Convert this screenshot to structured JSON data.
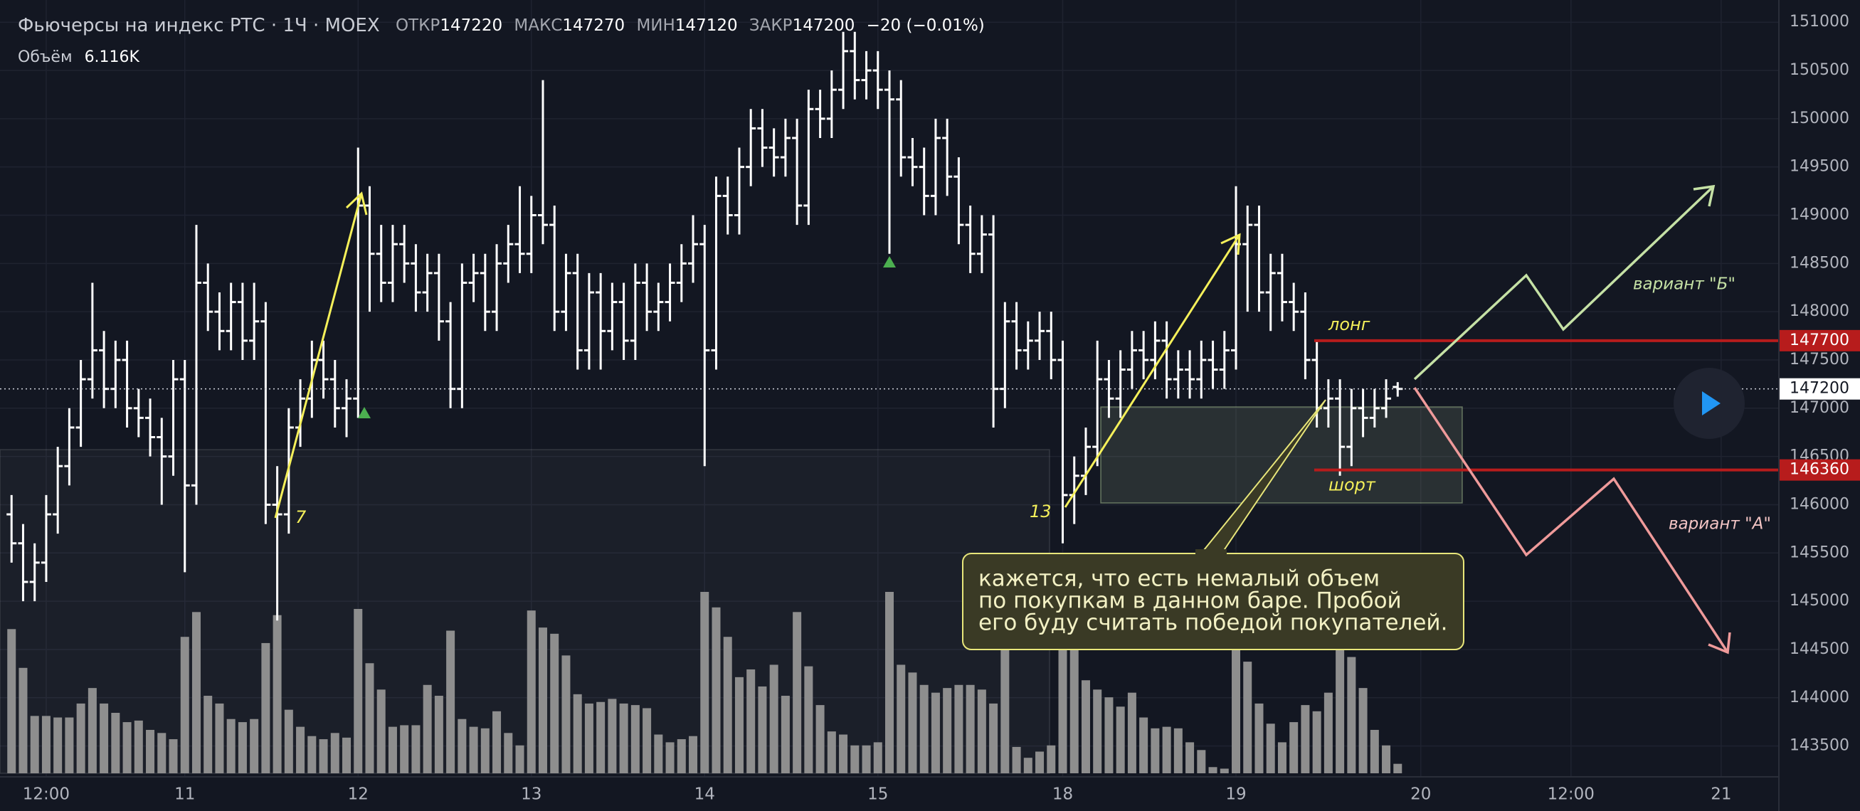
{
  "header": {
    "title": "Фьючерсы на индекс РТС · 1Ч · MOEX",
    "open_label": "ОТКР",
    "high_label": "МАКС",
    "low_label": "МИН",
    "close_label": "ЗАКР",
    "change": "−20 (−0.01%)",
    "volume_label": "Объём",
    "volume_value": "6.116K"
  },
  "chart_data": {
    "type": "ohlc",
    "color": "#ffffff",
    "volume_color": "#8e8e8e",
    "open": [
      145900,
      145600,
      145200,
      145400,
      145900,
      146400,
      146800,
      147300,
      147600,
      147200,
      147500,
      147000,
      146900,
      146700,
      146500,
      147300,
      146200,
      148300,
      148000,
      147800,
      148100,
      147700,
      147900,
      146000,
      145900,
      146800,
      147100,
      147500,
      147300,
      147000,
      147100,
      149100,
      148600,
      148300,
      148700,
      148500,
      148200,
      148400,
      147900,
      147200,
      148300,
      148400,
      148000,
      148500,
      148700,
      148600,
      149000,
      148900,
      148000,
      148400,
      147600,
      148200,
      147800,
      148100,
      147700,
      148300,
      148000,
      148100,
      148300,
      148500,
      148700,
      147600,
      149200,
      149000,
      149500,
      149900,
      149700,
      149600,
      149800,
      149100,
      150100,
      150000,
      150300,
      150700,
      150400,
      150500,
      150300,
      150200,
      149600,
      149500,
      149200,
      149800,
      149400,
      148900,
      148600,
      148800,
      147200,
      147900,
      147600,
      147700,
      147800,
      147500,
      146100,
      146300,
      146600,
      147300,
      147100,
      147400,
      147600,
      147500,
      147700,
      147300,
      147400,
      147300,
      147500,
      147400,
      147600,
      148700,
      148900,
      148200,
      148400,
      148100,
      148000,
      147500,
      147000,
      147100,
      146600,
      147000,
      146900,
      147000,
      147220
    ],
    "high": [
      146100,
      145800,
      145600,
      146100,
      146600,
      147000,
      147500,
      148300,
      147800,
      147700,
      147700,
      147200,
      147100,
      146900,
      147500,
      147500,
      148900,
      148500,
      148200,
      148300,
      148300,
      148300,
      148100,
      146400,
      147000,
      147300,
      147700,
      147700,
      147500,
      147300,
      149700,
      149300,
      148900,
      148900,
      148900,
      148700,
      148600,
      148600,
      148100,
      148500,
      148600,
      148600,
      148700,
      148900,
      149300,
      149200,
      150400,
      149100,
      148600,
      148600,
      148400,
      148400,
      148300,
      148300,
      148500,
      148500,
      148300,
      148500,
      148700,
      149000,
      148900,
      149400,
      149400,
      149700,
      150100,
      150100,
      149900,
      150000,
      150000,
      150300,
      150300,
      150500,
      150900,
      150900,
      150700,
      150700,
      150500,
      150400,
      149800,
      149700,
      150000,
      150000,
      149600,
      149100,
      149000,
      149000,
      148100,
      148100,
      147900,
      148000,
      148000,
      147700,
      146500,
      146800,
      147700,
      147500,
      147600,
      147800,
      147800,
      147900,
      147900,
      147600,
      147600,
      147700,
      147700,
      147800,
      149300,
      149100,
      149100,
      148600,
      148600,
      148300,
      148200,
      147700,
      147300,
      147300,
      147200,
      147200,
      147200,
      147300,
      147270
    ],
    "low": [
      145400,
      145000,
      145000,
      145200,
      145700,
      146200,
      146600,
      147100,
      147000,
      147000,
      146800,
      146700,
      146500,
      146000,
      146300,
      145300,
      146000,
      147800,
      147600,
      147600,
      147500,
      147500,
      145800,
      144800,
      145700,
      146600,
      146900,
      147100,
      146800,
      146700,
      146900,
      148000,
      148100,
      148100,
      148300,
      148000,
      148000,
      147700,
      147000,
      147000,
      148100,
      147800,
      147800,
      148300,
      148400,
      148400,
      148700,
      147800,
      147800,
      147400,
      147400,
      147400,
      147600,
      147500,
      147500,
      147800,
      147800,
      147900,
      148100,
      148300,
      146400,
      147400,
      148800,
      148800,
      149300,
      149500,
      149400,
      149400,
      148900,
      148900,
      149800,
      149800,
      150100,
      150200,
      150200,
      150100,
      148600,
      149400,
      149300,
      149000,
      149000,
      149200,
      148700,
      148400,
      148400,
      146800,
      147000,
      147400,
      147400,
      147500,
      147300,
      145600,
      145800,
      146100,
      146400,
      146900,
      146900,
      147200,
      147300,
      147300,
      147100,
      147100,
      147100,
      147100,
      147200,
      147200,
      147400,
      148000,
      148000,
      147800,
      147900,
      147800,
      147300,
      146800,
      146800,
      146300,
      146400,
      146700,
      146800,
      146900,
      147120
    ],
    "close": [
      145600,
      145200,
      145400,
      145900,
      146400,
      146800,
      147300,
      147600,
      147200,
      147500,
      147000,
      146900,
      146700,
      146500,
      147300,
      146200,
      148300,
      148000,
      147800,
      148100,
      147700,
      147900,
      146000,
      145900,
      146800,
      147100,
      147500,
      147300,
      147000,
      147100,
      149100,
      148600,
      148300,
      148700,
      148500,
      148200,
      148400,
      147900,
      147200,
      148300,
      148400,
      148000,
      148500,
      148700,
      148600,
      149000,
      148900,
      148000,
      148400,
      147600,
      148200,
      147800,
      148100,
      147700,
      148300,
      148000,
      148100,
      148300,
      148500,
      148700,
      147600,
      149200,
      149000,
      149500,
      149900,
      149700,
      149600,
      149800,
      149100,
      150100,
      150000,
      150300,
      150700,
      150400,
      150500,
      150300,
      150200,
      149600,
      149500,
      149200,
      149800,
      149400,
      148900,
      148600,
      148800,
      147200,
      147900,
      147600,
      147700,
      147800,
      147500,
      146100,
      146300,
      146600,
      147300,
      147100,
      147400,
      147600,
      147500,
      147700,
      147300,
      147400,
      147300,
      147500,
      147400,
      147600,
      148700,
      148900,
      148200,
      148400,
      148100,
      148000,
      147500,
      147000,
      147100,
      146600,
      147000,
      146900,
      147000,
      147100,
      147200
    ],
    "volume": [
      93000,
      68000,
      37000,
      37000,
      36000,
      36000,
      45000,
      55000,
      45000,
      39000,
      33000,
      34000,
      28000,
      26000,
      22000,
      88000,
      104000,
      50000,
      45000,
      35000,
      33000,
      35000,
      84000,
      102000,
      41000,
      30000,
      24000,
      22000,
      26000,
      23000,
      106000,
      71000,
      54000,
      30000,
      31000,
      31000,
      57000,
      50000,
      92000,
      35000,
      30000,
      29000,
      40000,
      26000,
      18000,
      105000,
      94000,
      90000,
      76000,
      51000,
      45000,
      46000,
      48000,
      45000,
      44000,
      42000,
      25000,
      20000,
      22000,
      24000,
      117000,
      107000,
      88000,
      62000,
      67000,
      56000,
      70000,
      50000,
      104000,
      69000,
      44000,
      27000,
      25000,
      18000,
      18000,
      20000,
      117000,
      70000,
      65000,
      57000,
      52000,
      55000,
      57000,
      57000,
      54000,
      45000,
      95000,
      17000,
      10000,
      14000,
      18000,
      100000,
      80000,
      60000,
      54000,
      49000,
      43000,
      52000,
      36000,
      29000,
      30000,
      29000,
      20000,
      15000,
      4000,
      3000,
      80000,
      72000,
      45000,
      32000,
      20000,
      33000,
      44000,
      40000,
      52000,
      80000,
      75000,
      55000,
      28000,
      18000,
      6116
    ],
    "ylim": [
      143180,
      151230
    ],
    "yticks": [
      143500,
      144000,
      144500,
      145000,
      145500,
      146000,
      146500,
      147000,
      147500,
      148000,
      148500,
      149000,
      149500,
      150000,
      150500,
      151000
    ],
    "xlim": [
      -1,
      153
    ],
    "xticks": [
      {
        "value": 3,
        "label": "12:00"
      },
      {
        "value": 15,
        "label": "11"
      },
      {
        "value": 30,
        "label": "12"
      },
      {
        "value": 45,
        "label": "13"
      },
      {
        "value": 60,
        "label": "14"
      },
      {
        "value": 75,
        "label": "15"
      },
      {
        "value": 91,
        "label": "18"
      },
      {
        "value": 106,
        "label": "19"
      },
      {
        "value": 122,
        "label": "20"
      },
      {
        "value": 135,
        "label": "12:00"
      },
      {
        "value": 148,
        "label": "21"
      }
    ],
    "grid": true,
    "levels": [
      {
        "name": "лонг",
        "value": 147700,
        "color": "#b71c1c"
      },
      {
        "name": "шорт",
        "value": 146360,
        "color": "#b71c1c"
      }
    ],
    "annotations": {
      "wave1": "7",
      "wave2": "13",
      "variant_b": "вариант \"Б\"",
      "variant_a": "вариант \"А\"",
      "note": [
        "кажется, что есть немалый объем",
        "по покупкам в данном баре. Пробой",
        "его буду считать победой покупателей."
      ]
    }
  }
}
